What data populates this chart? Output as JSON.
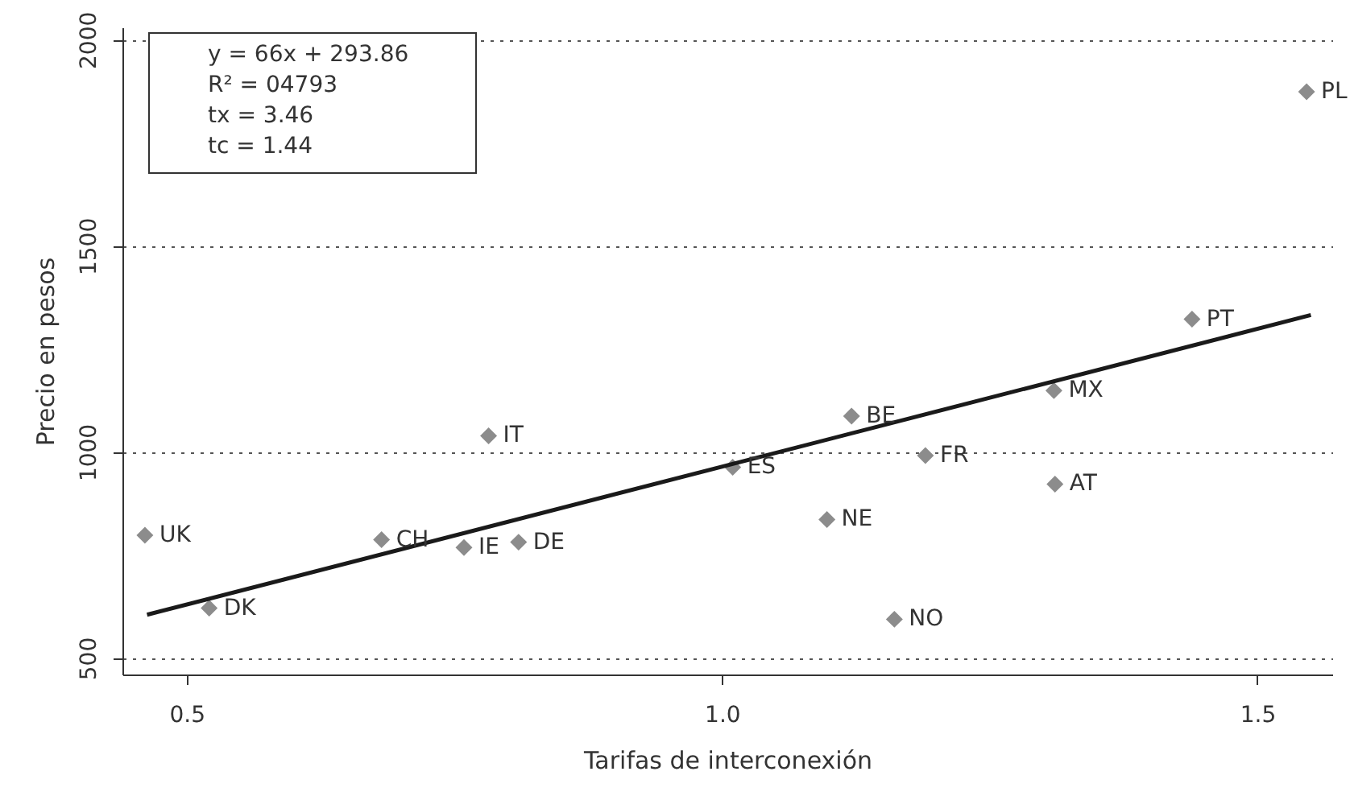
{
  "chart_data": {
    "type": "scatter",
    "xlabel": "Tarifas de interconexión",
    "ylabel": "Precio en pesos",
    "xlim": [
      0.44,
      1.57
    ],
    "xticks": [
      {
        "value": 0.5,
        "label": "0.5"
      },
      {
        "value": 1,
        "label": "1.0"
      },
      {
        "value": 1.5,
        "label": "1.5"
      }
    ],
    "ylim": [
      460,
      2030
    ],
    "yticks": [
      500,
      1000,
      1500,
      2000
    ],
    "grid": "y",
    "marker": "diamond",
    "series": [
      {
        "color": "#8c8c8c",
        "x": [
          0.461,
          0.521,
          0.682,
          0.759,
          0.81,
          0.782,
          1.01,
          1.121,
          1.098,
          1.19,
          1.161,
          1.31,
          1.311,
          1.439,
          1.546
        ],
        "values": [
          798,
          621,
          787,
          768,
          781,
          1039,
          963,
          1087,
          836,
          991,
          594,
          1149,
          922,
          1322,
          1874
        ]
      },
      {
        "type": "line",
        "color": "#1a1a1a",
        "line_style": "solid",
        "marker": "none",
        "x": [
          0.463,
          1.55
        ],
        "values": [
          605,
          1332
        ]
      }
    ],
    "annotations": [
      "y = 66x + 293.86",
      "R² = 04793",
      "tx = 3.46",
      "tc = 1.44",
      {
        "text": "UK",
        "x": 0.461,
        "y": 798
      },
      {
        "text": "DK",
        "x": 0.521,
        "y": 621
      },
      {
        "text": "CH",
        "x": 0.682,
        "y": 787
      },
      {
        "text": "IE",
        "x": 0.759,
        "y": 768
      },
      {
        "text": "DE",
        "x": 0.81,
        "y": 781
      },
      {
        "text": "IT",
        "x": 0.782,
        "y": 1039
      },
      {
        "text": "ES",
        "x": 1.01,
        "y": 963
      },
      {
        "text": "BE",
        "x": 1.121,
        "y": 1087
      },
      {
        "text": "NE",
        "x": 1.098,
        "y": 836
      },
      {
        "text": "FR",
        "x": 1.19,
        "y": 991
      },
      {
        "text": "NO",
        "x": 1.161,
        "y": 594
      },
      {
        "text": "MX",
        "x": 1.31,
        "y": 1149
      },
      {
        "text": "AT",
        "x": 1.311,
        "y": 922
      },
      {
        "text": "PT",
        "x": 1.439,
        "y": 1322
      },
      {
        "text": "PL",
        "x": 1.546,
        "y": 1874
      }
    ]
  }
}
